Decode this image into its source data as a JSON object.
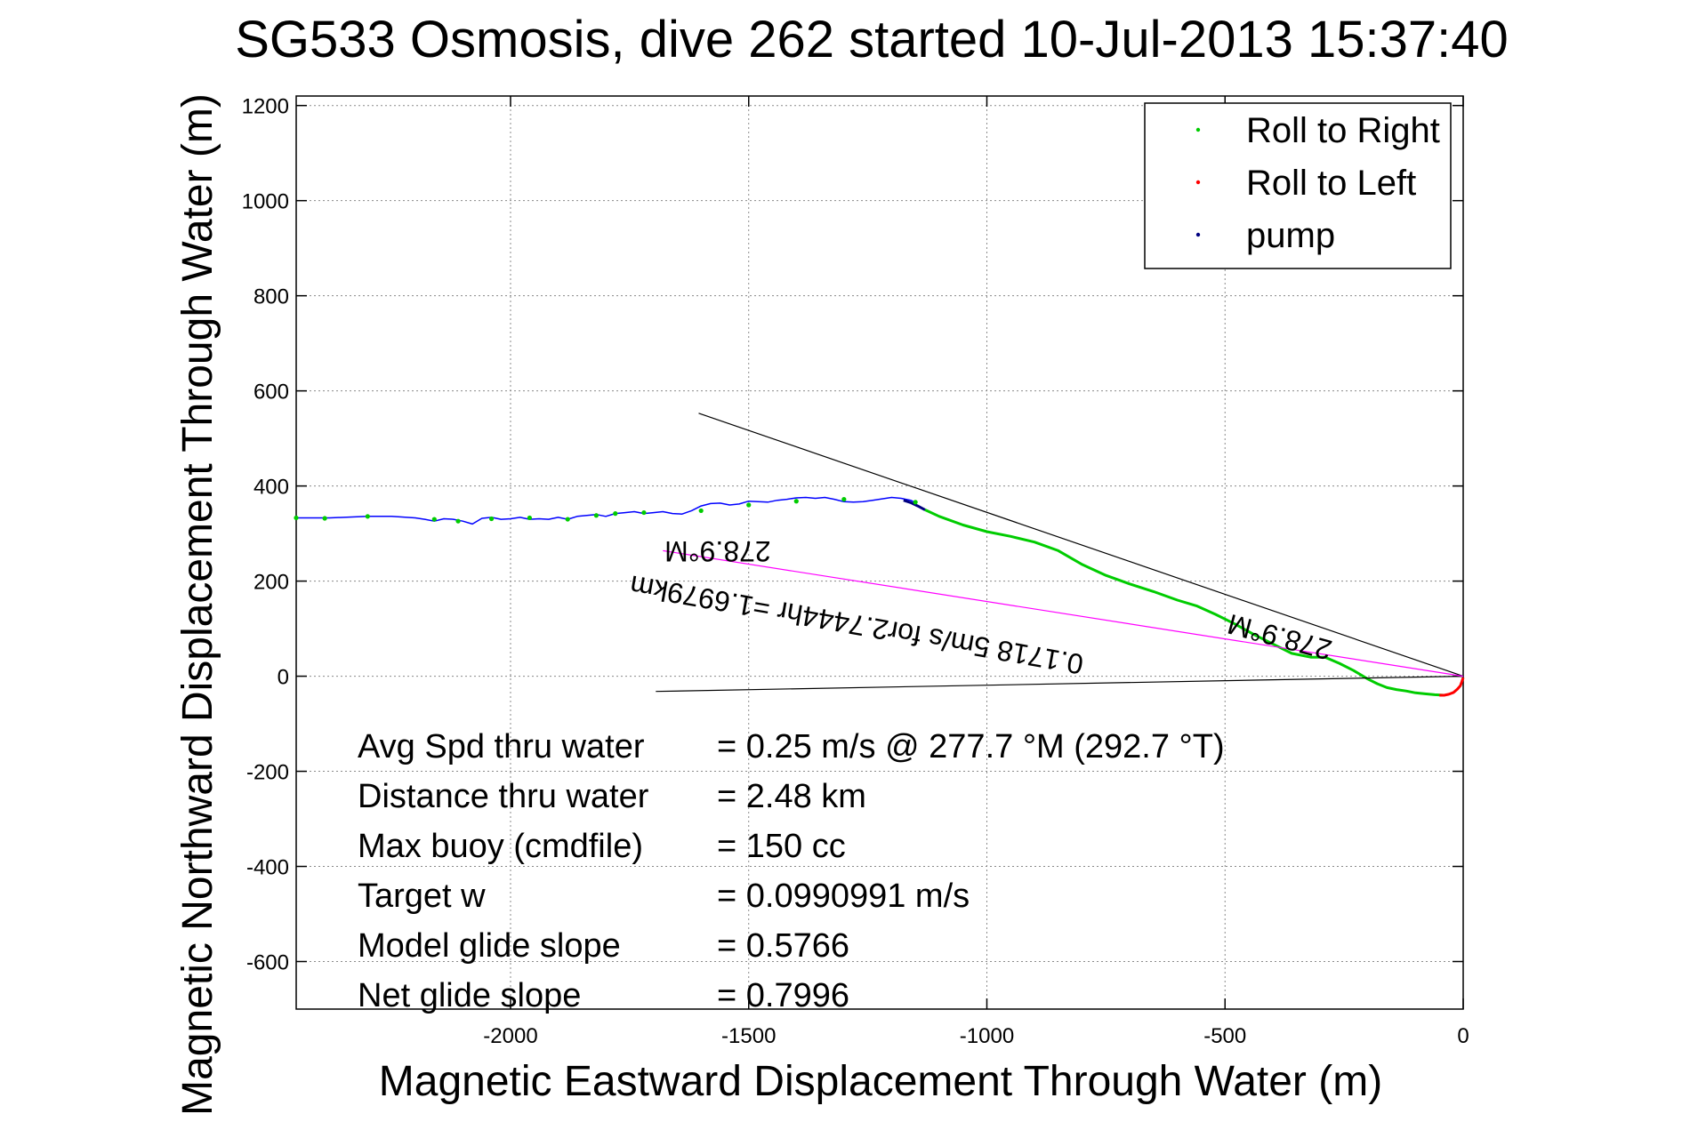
{
  "chart_data": {
    "type": "line",
    "title": "SG533 Osmosis, dive 262 started 10-Jul-2013 15:37:40",
    "xlabel": "Magnetic Eastward Displacement Through Water (m)",
    "ylabel": "Magnetic Northward Displacement Through Water (m)",
    "xlim": [
      -2450,
      0
    ],
    "ylim": [
      -700,
      1220
    ],
    "grid": true,
    "x_ticks": [
      -2000,
      -1500,
      -1000,
      -500,
      0
    ],
    "y_ticks": [
      1200,
      1000,
      800,
      600,
      400,
      200,
      0,
      -200,
      -400,
      -600
    ],
    "legend": {
      "placement": "top-right",
      "entries": [
        {
          "label": "Roll to Right",
          "color": "#00cc00"
        },
        {
          "label": "Roll to Left",
          "color": "#ff0000"
        },
        {
          "label": "pump",
          "color": "#000080"
        }
      ]
    },
    "series": [
      {
        "role": "track",
        "color": "#0000ff",
        "x": [
          -2450,
          -2380,
          -2300,
          -2250,
          -2200,
          -2180,
          -2160,
          -2140,
          -2120,
          -2100,
          -2080,
          -2060,
          -2040,
          -2020,
          -2000,
          -1980,
          -1960,
          -1940,
          -1920,
          -1900,
          -1880,
          -1860,
          -1840,
          -1820,
          -1800,
          -1780,
          -1760,
          -1740,
          -1720,
          -1700,
          -1680,
          -1660,
          -1640,
          -1620,
          -1600,
          -1580,
          -1560,
          -1540,
          -1520,
          -1500,
          -1480,
          -1460,
          -1440,
          -1420,
          -1400,
          -1380,
          -1360,
          -1340,
          -1320,
          -1300,
          -1280,
          -1260,
          -1240,
          -1220,
          -1200,
          -1180,
          -1160,
          -1150
        ],
        "y": [
          333,
          333,
          336,
          336,
          333,
          330,
          326,
          331,
          330,
          326,
          320,
          332,
          334,
          330,
          331,
          334,
          330,
          331,
          330,
          334,
          330,
          336,
          338,
          340,
          336,
          342,
          344,
          346,
          342,
          344,
          346,
          342,
          341,
          348,
          358,
          363,
          364,
          360,
          362,
          368,
          367,
          366,
          370,
          372,
          375,
          376,
          374,
          376,
          372,
          367,
          366,
          367,
          370,
          373,
          376,
          374,
          370,
          365
        ]
      },
      {
        "role": "roll_right",
        "color": "#00cc00",
        "x": [
          -1130,
          -1100,
          -1050,
          -1000,
          -950,
          -900,
          -850,
          -800,
          -750,
          -700,
          -650,
          -600,
          -560,
          -520,
          -480,
          -440,
          -400,
          -360,
          -320,
          -290,
          -260,
          -230,
          -200,
          -180,
          -160,
          -140,
          -120,
          -100,
          -80,
          -60,
          -40
        ],
        "y": [
          350,
          336,
          318,
          304,
          294,
          282,
          264,
          235,
          212,
          194,
          178,
          160,
          148,
          130,
          110,
          88,
          68,
          48,
          40,
          40,
          27,
          12,
          -6,
          -16,
          -24,
          -28,
          -31,
          -35,
          -37,
          -39,
          -40
        ]
      },
      {
        "role": "roll_left",
        "color": "#ff0000",
        "x": [
          -50,
          -40,
          -30,
          -20,
          -12,
          -6,
          -3,
          0
        ],
        "y": [
          -40,
          -40,
          -38,
          -34,
          -27,
          -20,
          -12,
          -3
        ]
      },
      {
        "role": "pump",
        "color": "#000080",
        "x": [
          -1175,
          -1160,
          -1145,
          -1130
        ],
        "y": [
          370,
          365,
          358,
          350
        ]
      },
      {
        "role": "heading_line",
        "color": "#000000",
        "x": [
          0,
          -1605
        ],
        "y": [
          0,
          553
        ]
      },
      {
        "role": "start_line",
        "color": "#000000",
        "x": [
          0,
          -1695
        ],
        "y": [
          0,
          -32
        ]
      },
      {
        "role": "current_line",
        "color": "#ff00ff",
        "x": [
          0,
          -1680
        ],
        "y": [
          0,
          264
        ]
      }
    ],
    "markers_right": {
      "x": [
        -2450,
        -2390,
        -2300,
        -2160,
        -2110,
        -2040,
        -1960,
        -1880,
        -1820,
        -1780,
        -1720,
        -1600,
        -1500,
        -1400,
        -1300,
        -1150
      ],
      "y": [
        333,
        332,
        336,
        330,
        326,
        331,
        333,
        330,
        338,
        342,
        344,
        348,
        360,
        368,
        372,
        366
      ]
    },
    "annotations": [
      {
        "text": "278.9°M",
        "x": -1565,
        "y": 283,
        "rotate": 180
      },
      {
        "text": "0.1718 5m/s for2.7444hr =1.6979km",
        "x": -1270,
        "y": 128,
        "rotate": 190
      },
      {
        "text": "278.9°M",
        "x": -380,
        "y": 102,
        "rotate": 195
      }
    ],
    "stats": [
      {
        "label": "Avg Spd thru water",
        "value": "=  0.25 m/s @ 277.7 °M (292.7 °T)"
      },
      {
        "label": "Distance thru water",
        "value": "=  2.48 km"
      },
      {
        "label": "Max buoy (cmdfile)",
        "value": "= 150 cc"
      },
      {
        "label": "Target w",
        "value": "= 0.0990991 m/s"
      },
      {
        "label": "Model glide slope",
        "value": "= 0.5766"
      },
      {
        "label": "Net glide slope",
        "value": "= 0.7996"
      }
    ]
  }
}
